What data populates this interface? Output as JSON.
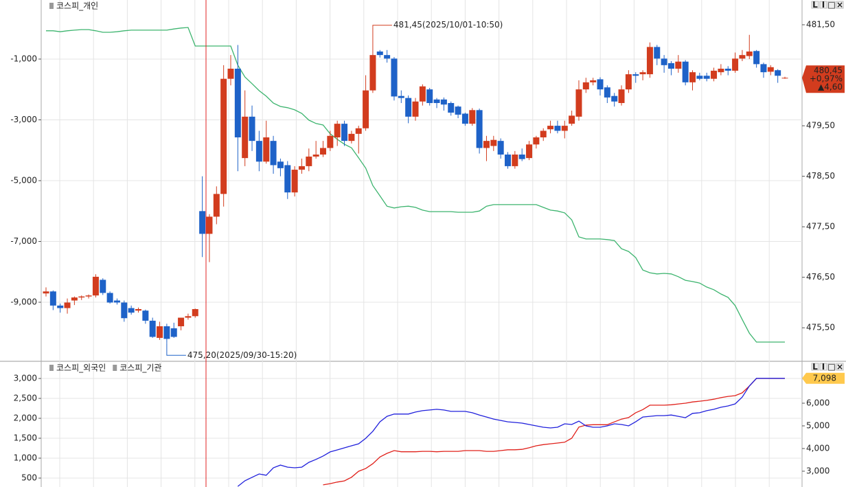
{
  "panel_buttons": [
    "L",
    "I",
    "□",
    "×"
  ],
  "chart_data": [
    {
      "type": "candlestick",
      "series": [
        {
          "name": "코스피_개인",
          "color": "#3cb46e",
          "values": [
            -70,
            -70,
            -100,
            -70,
            -50,
            -30,
            -30,
            -70,
            -120,
            -120,
            -100,
            -70,
            -50,
            -50,
            -50,
            -50,
            -50,
            -50,
            -10,
            20,
            40,
            -570,
            -570,
            -570,
            -570,
            -570,
            -570,
            -1200,
            -1590,
            -1810,
            -2040,
            -2220,
            -2450,
            -2560,
            -2600,
            -2670,
            -2790,
            -3010,
            -3120,
            -3170,
            -3460,
            -3640,
            -3800,
            -3920,
            -4250,
            -4590,
            -5160,
            -5500,
            -5840,
            -5900,
            -5860,
            -5840,
            -5880,
            -5970,
            -6020,
            -6020,
            -6020,
            -6020,
            -6040,
            -6040,
            -6040,
            -6000,
            -5840,
            -5790,
            -5790,
            -5790,
            -5790,
            -5790,
            -5790,
            -5790,
            -5880,
            -5970,
            -6000,
            -6060,
            -6290,
            -6850,
            -6920,
            -6920,
            -6920,
            -6940,
            -6970,
            -7240,
            -7330,
            -7530,
            -7940,
            -8030,
            -8070,
            -8050,
            -8070,
            -8160,
            -8280,
            -8320,
            -8370,
            -8500,
            -8590,
            -8730,
            -8840,
            -9110,
            -9570,
            -10020,
            -10310,
            -10310,
            -10310,
            -10310,
            -10310
          ]
        }
      ],
      "candles": {
        "axis": "y2",
        "up_color": "#d23c1e",
        "down_color": "#1e62c8",
        "open": [
          476.18,
          476.22,
          475.94,
          475.89,
          476.04,
          476.1,
          476.12,
          476.14,
          476.45,
          476.19,
          476.04,
          476.0,
          475.89,
          475.84,
          475.84,
          475.64,
          475.3,
          475.53,
          475.49,
          475.53,
          475.7,
          475.73,
          477.81,
          477.36,
          477.7,
          478.15,
          480.43,
          480.63,
          478.86,
          479.68,
          479.2,
          478.79,
          479.2,
          478.79,
          478.72,
          478.18,
          478.63,
          478.7,
          478.89,
          478.93,
          479.06,
          479.27,
          479.54,
          479.2,
          479.34,
          479.45,
          480.2,
          480.97,
          480.9,
          480.83,
          480.09,
          480.05,
          479.68,
          479.98,
          480.22,
          480.02,
          480.02,
          479.95,
          479.88,
          479.74,
          479.54,
          479.81,
          479.06,
          479.1,
          479.2,
          478.93,
          478.7,
          478.93,
          478.86,
          479.13,
          479.27,
          479.43,
          479.5,
          479.4,
          479.54,
          479.68,
          480.22,
          480.36,
          480.42,
          480.26,
          480.09,
          479.95,
          480.22,
          480.52,
          480.52,
          480.52,
          481.06,
          480.83,
          480.74,
          480.63,
          480.77,
          480.36,
          480.49,
          480.49,
          480.43,
          480.56,
          480.63,
          480.59,
          480.83,
          480.88,
          480.98,
          480.72,
          480.57,
          480.6,
          480.45
        ],
        "high": [
          476.3,
          476.24,
          475.98,
          476.08,
          476.12,
          476.14,
          476.16,
          476.56,
          476.48,
          476.22,
          476.08,
          476.04,
          475.94,
          475.9,
          475.86,
          475.7,
          475.62,
          475.58,
          475.6,
          475.66,
          475.78,
          475.88,
          478.5,
          477.75,
          478.3,
          480.7,
          480.9,
          481.1,
          480.2,
          479.9,
          479.4,
          479.6,
          479.3,
          478.85,
          478.8,
          478.7,
          478.85,
          479.05,
          479.2,
          479.2,
          479.4,
          479.6,
          479.6,
          479.4,
          479.5,
          480.5,
          481.45,
          481.0,
          481.0,
          480.86,
          480.2,
          480.1,
          480.05,
          480.32,
          480.25,
          480.05,
          480.06,
          479.98,
          479.9,
          479.76,
          479.85,
          479.84,
          479.3,
          479.3,
          479.25,
          478.98,
          479.0,
          479.05,
          479.2,
          479.3,
          479.45,
          479.6,
          479.6,
          479.6,
          479.8,
          480.4,
          480.45,
          480.45,
          480.46,
          480.3,
          480.15,
          480.3,
          480.6,
          480.56,
          480.6,
          481.15,
          481.1,
          480.9,
          480.78,
          480.9,
          480.8,
          480.6,
          480.55,
          480.55,
          480.65,
          480.72,
          480.68,
          480.95,
          481.0,
          481.3,
          481.0,
          480.75,
          480.7,
          480.62,
          480.47
        ],
        "low": [
          476.12,
          475.85,
          475.8,
          475.78,
          475.95,
          476.05,
          476.08,
          476.1,
          476.15,
          475.98,
          475.96,
          475.62,
          475.76,
          475.8,
          475.58,
          475.3,
          475.26,
          475.2,
          475.3,
          475.45,
          475.66,
          475.7,
          476.9,
          476.8,
          477.55,
          477.9,
          480.3,
          478.6,
          478.7,
          479.0,
          478.6,
          478.75,
          478.55,
          478.5,
          478.05,
          478.1,
          478.55,
          478.6,
          478.85,
          478.88,
          479.0,
          479.1,
          479.1,
          479.15,
          478.95,
          479.4,
          480.15,
          480.85,
          480.75,
          480.0,
          479.95,
          479.55,
          479.6,
          479.9,
          479.9,
          479.85,
          479.8,
          479.7,
          479.65,
          479.5,
          479.5,
          478.95,
          478.8,
          479.0,
          478.85,
          478.65,
          478.65,
          478.8,
          478.82,
          479.05,
          479.2,
          479.35,
          479.35,
          479.25,
          479.5,
          479.6,
          480.15,
          480.3,
          480.1,
          479.95,
          479.88,
          479.9,
          480.15,
          480.35,
          480.4,
          480.45,
          480.7,
          480.55,
          480.5,
          480.55,
          480.3,
          480.2,
          480.4,
          480.38,
          480.38,
          480.5,
          480.5,
          480.55,
          480.78,
          480.82,
          480.65,
          480.45,
          480.5,
          480.35,
          480.43
        ],
        "close": [
          476.22,
          475.94,
          475.89,
          476.0,
          476.1,
          476.12,
          476.14,
          476.51,
          476.19,
          476.0,
          476.0,
          475.69,
          475.8,
          475.87,
          475.64,
          475.32,
          475.53,
          475.28,
          475.32,
          475.7,
          475.73,
          475.87,
          477.36,
          477.7,
          478.15,
          480.43,
          480.63,
          479.27,
          479.68,
          479.2,
          478.79,
          479.27,
          478.72,
          478.66,
          478.18,
          478.63,
          478.7,
          478.89,
          478.93,
          479.06,
          479.3,
          479.54,
          479.2,
          479.34,
          479.45,
          480.2,
          480.9,
          480.9,
          480.83,
          480.08,
          480.05,
          479.68,
          479.98,
          480.28,
          479.95,
          479.95,
          479.92,
          479.76,
          479.72,
          479.54,
          479.81,
          479.06,
          479.2,
          479.22,
          478.93,
          478.7,
          478.93,
          478.84,
          479.13,
          479.27,
          479.4,
          479.5,
          479.4,
          479.5,
          479.7,
          480.22,
          480.36,
          480.4,
          480.22,
          480.06,
          479.98,
          480.22,
          480.52,
          480.49,
          480.56,
          481.06,
          480.83,
          480.7,
          480.63,
          480.77,
          480.36,
          480.56,
          480.43,
          480.43,
          480.59,
          480.63,
          480.59,
          480.83,
          480.9,
          480.97,
          480.72,
          480.56,
          480.66,
          480.49,
          480.45
        ]
      },
      "ylim": [
        -10921,
        943
      ],
      "yticks": [
        {
          "value": -1000,
          "label": "-1,000"
        },
        {
          "value": -3000,
          "label": "-3,000"
        },
        {
          "value": -5000,
          "label": "-5,000"
        },
        {
          "value": -7000,
          "label": "-7,000"
        },
        {
          "value": -9000,
          "label": "-9,000"
        }
      ],
      "y2lim": [
        474.85,
        481.99
      ],
      "y2ticks": [
        {
          "value": 481.5,
          "label": "481,50"
        },
        {
          "value": 479.5,
          "label": "479,50"
        },
        {
          "value": 478.5,
          "label": "478,50"
        },
        {
          "value": 477.5,
          "label": "477,50"
        },
        {
          "value": 476.5,
          "label": "476,50"
        },
        {
          "value": 475.5,
          "label": "475,50"
        }
      ],
      "annotations": [
        {
          "value": 481.45,
          "label": "481,45(2025/10/01-10:50)",
          "color": "#d23c1e"
        },
        {
          "value": 475.2,
          "label": "475,20(2025/09/30-15:20)",
          "color": "#1e62c8"
        }
      ],
      "price_tag": {
        "price": {
          "value": 480.45,
          "label": "480,45"
        },
        "change_pct": {
          "value": 0.97,
          "label": "+0,97%"
        },
        "change": {
          "value": 4.6,
          "label": "▲4,60"
        },
        "color": "#d23c1e"
      },
      "grid": true
    },
    {
      "type": "line",
      "series": [
        {
          "name": "코스피_외국인",
          "color": "#e0201a",
          "values": [
            null,
            null,
            null,
            null,
            null,
            null,
            null,
            null,
            null,
            null,
            null,
            null,
            null,
            null,
            null,
            null,
            null,
            null,
            null,
            null,
            null,
            null,
            null,
            null,
            null,
            null,
            null,
            null,
            null,
            null,
            null,
            null,
            null,
            null,
            null,
            null,
            null,
            null,
            null,
            330,
            360,
            400,
            430,
            520,
            670,
            740,
            860,
            1030,
            1120,
            1190,
            1160,
            1160,
            1160,
            1170,
            1170,
            1160,
            1170,
            1170,
            1170,
            1190,
            1190,
            1190,
            1170,
            1170,
            1190,
            1210,
            1210,
            1220,
            1260,
            1310,
            1340,
            1360,
            1380,
            1400,
            1500,
            1780,
            1830,
            1840,
            1840,
            1840,
            1910,
            1980,
            2020,
            2140,
            2220,
            2330,
            2330,
            2330,
            2340,
            2360,
            2380,
            2410,
            2430,
            2450,
            2480,
            2520,
            2550,
            2570,
            2640,
            2810,
            3000,
            3000,
            3000,
            3000,
            3000
          ]
        },
        {
          "name": "코스피_기관",
          "color": "#2020dc",
          "axis": "y2",
          "values": [
            null,
            null,
            null,
            null,
            null,
            null,
            null,
            null,
            null,
            null,
            null,
            null,
            null,
            null,
            null,
            null,
            null,
            null,
            null,
            null,
            null,
            null,
            null,
            null,
            null,
            null,
            null,
            2330,
            2580,
            2730,
            2880,
            2820,
            3150,
            3270,
            3180,
            3150,
            3180,
            3390,
            3520,
            3670,
            3850,
            3940,
            4030,
            4120,
            4210,
            4450,
            4760,
            5180,
            5420,
            5520,
            5520,
            5520,
            5610,
            5670,
            5700,
            5730,
            5700,
            5640,
            5640,
            5640,
            5580,
            5480,
            5390,
            5300,
            5240,
            5180,
            5150,
            5120,
            5060,
            5000,
            4940,
            4910,
            4940,
            5090,
            5060,
            5210,
            5000,
            4940,
            4940,
            5000,
            5090,
            5060,
            5000,
            5180,
            5390,
            5420,
            5450,
            5450,
            5480,
            5420,
            5360,
            5550,
            5580,
            5670,
            5730,
            5820,
            5880,
            5970,
            6270,
            6760,
            7098,
            7098,
            7098,
            7098,
            7098
          ]
        }
      ],
      "ylim": [
        276,
        3414
      ],
      "yticks": [
        {
          "value": 3000,
          "label": "3,000"
        },
        {
          "value": 2500,
          "label": "2,500"
        },
        {
          "value": 2000,
          "label": "2,000"
        },
        {
          "value": 1500,
          "label": "1,500"
        },
        {
          "value": 1000,
          "label": "1,000"
        },
        500
      ],
      "y2lim": [
        2303,
        7818
      ],
      "y2ticks": [
        {
          "value": 6000,
          "label": "6,000"
        },
        {
          "value": 5000,
          "label": "5,000"
        },
        {
          "value": 4000,
          "label": "4,000"
        },
        {
          "value": 3000,
          "label": "3,000"
        }
      ],
      "last_tag": {
        "value": 7098,
        "label": "7,098",
        "color": "#ffc94d"
      },
      "grid": true
    }
  ]
}
